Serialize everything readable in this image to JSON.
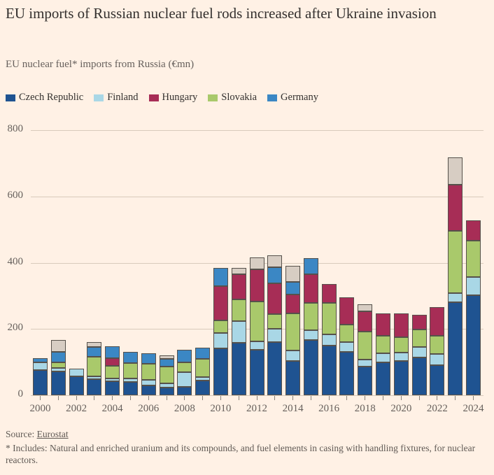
{
  "header": {
    "title": "EU imports of Russian nuclear fuel rods increased after Ukraine invasion",
    "subtitle": "EU nuclear fuel* imports from Russia (€mn)"
  },
  "legend": {
    "items": [
      {
        "label": "Czech Republic",
        "color": "#1F5391"
      },
      {
        "label": "Finland",
        "color": "#A9D7E6"
      },
      {
        "label": "Hungary",
        "color": "#A72D56"
      },
      {
        "label": "Slovakia",
        "color": "#A9C96B"
      },
      {
        "label": "Germany",
        "color": "#3B87C4"
      }
    ]
  },
  "chart_data": {
    "type": "bar",
    "stacked": true,
    "title": "EU imports of Russian nuclear fuel rods increased after Ukraine invasion",
    "subtitle": "EU nuclear fuel* imports from Russia (€mn)",
    "xlabel": "",
    "ylabel": "€mn",
    "ylim": [
      0,
      800
    ],
    "yticks": [
      0,
      200,
      400,
      600,
      800
    ],
    "grid": true,
    "legend_position": "top",
    "categories": [
      2000,
      2001,
      2002,
      2003,
      2004,
      2005,
      2006,
      2007,
      2008,
      2009,
      2010,
      2011,
      2012,
      2013,
      2014,
      2015,
      2016,
      2017,
      2018,
      2019,
      2020,
      2021,
      2022,
      2023,
      2024
    ],
    "x_tick_labels": [
      "2000",
      "2002",
      "2004",
      "2006",
      "2008",
      "2010",
      "2012",
      "2014",
      "2016",
      "2018",
      "2020",
      "2022",
      "2024"
    ],
    "stack_order_bottom_to_top": [
      "Czech Republic",
      "Finland",
      "Slovakia",
      "Hungary",
      "Germany",
      "Other (unlabelled)"
    ],
    "series": [
      {
        "name": "Czech Republic",
        "color": "#1F5391",
        "values": [
          76,
          72,
          58,
          49,
          42,
          41,
          30,
          23,
          26,
          44,
          142,
          159,
          137,
          160,
          103,
          166,
          149,
          131,
          86,
          100,
          103,
          114,
          91,
          280,
          302
        ]
      },
      {
        "name": "Finland",
        "color": "#A9D7E6",
        "values": [
          23,
          10,
          23,
          9,
          8,
          9,
          16,
          12,
          44,
          10,
          46,
          65,
          25,
          41,
          32,
          30,
          35,
          30,
          21,
          26,
          25,
          31,
          33,
          29,
          54
        ]
      },
      {
        "name": "Slovakia",
        "color": "#A9C96B",
        "values": [
          0,
          17,
          0,
          59,
          39,
          47,
          48,
          51,
          30,
          55,
          37,
          65,
          121,
          44,
          112,
          82,
          94,
          53,
          86,
          53,
          48,
          53,
          56,
          187,
          111
        ]
      },
      {
        "name": "Hungary",
        "color": "#A72D56",
        "values": [
          0,
          0,
          0,
          0,
          23,
          0,
          0,
          0,
          0,
          0,
          105,
          77,
          96,
          93,
          56,
          88,
          58,
          81,
          60,
          67,
          72,
          44,
          86,
          140,
          61
        ]
      },
      {
        "name": "Germany",
        "color": "#3B87C4",
        "values": [
          12,
          32,
          0,
          28,
          35,
          34,
          33,
          24,
          37,
          34,
          54,
          0,
          0,
          49,
          40,
          48,
          0,
          0,
          0,
          0,
          0,
          0,
          0,
          0,
          0
        ]
      },
      {
        "name": "Other (unlabelled)",
        "color": "#D7CDC3",
        "values": [
          0,
          35,
          0,
          16,
          0,
          0,
          0,
          11,
          0,
          0,
          0,
          19,
          36,
          36,
          47,
          0,
          0,
          0,
          21,
          0,
          0,
          0,
          0,
          81,
          0
        ]
      }
    ]
  },
  "footer": {
    "source_prefix": "Source: ",
    "source_link": "Eurostat",
    "footnote": "* Includes: Natural and enriched uranium and its compounds, and fuel elements in casing with handling fixtures, for nuclear reactors."
  }
}
